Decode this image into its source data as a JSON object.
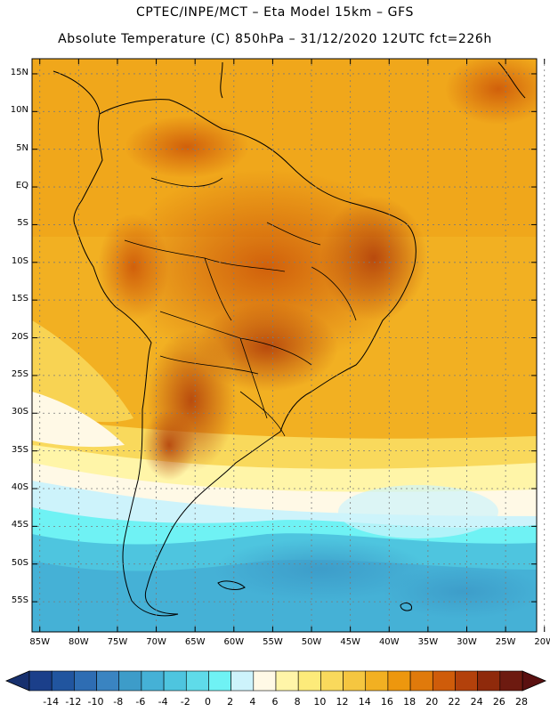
{
  "header": {
    "line1": "CPTEC/INPE/MCT –  Eta Model 15km – GFS",
    "line2": "Absolute Temperature (C) 850hPa – 31/12/2020 12UTC fct=226h"
  },
  "map": {
    "lat_labels": [
      "15N",
      "10N",
      "5N",
      "EQ",
      "5S",
      "10S",
      "15S",
      "20S",
      "25S",
      "30S",
      "35S",
      "40S",
      "45S",
      "50S",
      "55S"
    ],
    "lon_labels": [
      "85W",
      "80W",
      "75W",
      "70W",
      "65W",
      "60W",
      "55W",
      "50W",
      "45W",
      "40W",
      "35W",
      "30W",
      "25W",
      "20W"
    ],
    "lat_range": [
      17,
      -59
    ],
    "lon_range": [
      -86,
      -21
    ]
  },
  "colorbar": {
    "labels": [
      "-14",
      "-12",
      "-10",
      "-8",
      "-6",
      "-4",
      "-2",
      "0",
      "2",
      "4",
      "6",
      "8",
      "10",
      "12",
      "14",
      "16",
      "18",
      "20",
      "22",
      "24",
      "26",
      "28"
    ],
    "colors": [
      "#1b3f8a",
      "#21559f",
      "#2e6db3",
      "#3a84c1",
      "#3d9cc9",
      "#45b1d6",
      "#4ec5df",
      "#5fdbe9",
      "#6ff2f4",
      "#cdf3fb",
      "#fff9e6",
      "#fff5a8",
      "#fdeb7a",
      "#f9d95c",
      "#f5c640",
      "#f2b022",
      "#ed970e",
      "#e07a0b",
      "#cf5c0a",
      "#b3410b",
      "#8f2a0b",
      "#6d1a10"
    ],
    "under_color": "#17306e",
    "over_color": "#5a1010"
  }
}
